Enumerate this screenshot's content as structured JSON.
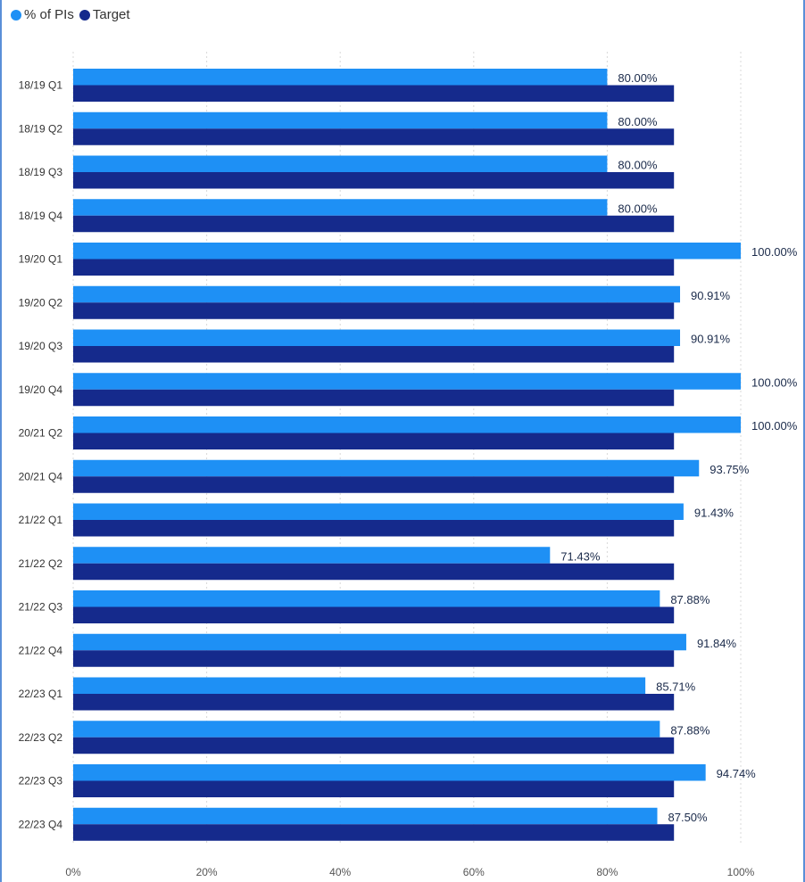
{
  "legend": {
    "primary_label": "% of PIs",
    "target_label": "Target",
    "primary_color": "#1e90f5",
    "target_color": "#152a8c"
  },
  "chart_data": {
    "type": "bar",
    "orientation": "horizontal",
    "categories": [
      "18/19 Q1",
      "18/19 Q2",
      "18/19 Q3",
      "18/19 Q4",
      "19/20 Q1",
      "19/20 Q2",
      "19/20 Q3",
      "19/20 Q4",
      "20/21 Q2",
      "20/21 Q4",
      "21/22 Q1",
      "21/22 Q2",
      "21/22 Q3",
      "21/22 Q4",
      "22/23 Q1",
      "22/23 Q2",
      "22/23 Q3",
      "22/23 Q4"
    ],
    "series": [
      {
        "name": "% of PIs",
        "color": "#1e90f5",
        "values": [
          80,
          80,
          80,
          80,
          100,
          90.91,
          90.91,
          100,
          100,
          93.75,
          91.43,
          71.43,
          87.88,
          91.84,
          85.71,
          87.88,
          94.74,
          87.5
        ],
        "labels": [
          "80.00%",
          "80.00%",
          "80.00%",
          "80.00%",
          "100.00%",
          "90.91%",
          "90.91%",
          "100.00%",
          "100.00%",
          "93.75%",
          "91.43%",
          "71.43%",
          "87.88%",
          "91.84%",
          "85.71%",
          "87.88%",
          "94.74%",
          "87.50%"
        ]
      },
      {
        "name": "Target",
        "color": "#152a8c",
        "values": [
          90,
          90,
          90,
          90,
          90,
          90,
          90,
          90,
          90,
          90,
          90,
          90,
          90,
          90,
          90,
          90,
          90,
          90
        ]
      }
    ],
    "xlim": [
      0,
      100
    ],
    "xticks": [
      "0%",
      "20%",
      "40%",
      "60%",
      "80%",
      "100%"
    ],
    "grid": true,
    "legend_position": "top-left"
  }
}
